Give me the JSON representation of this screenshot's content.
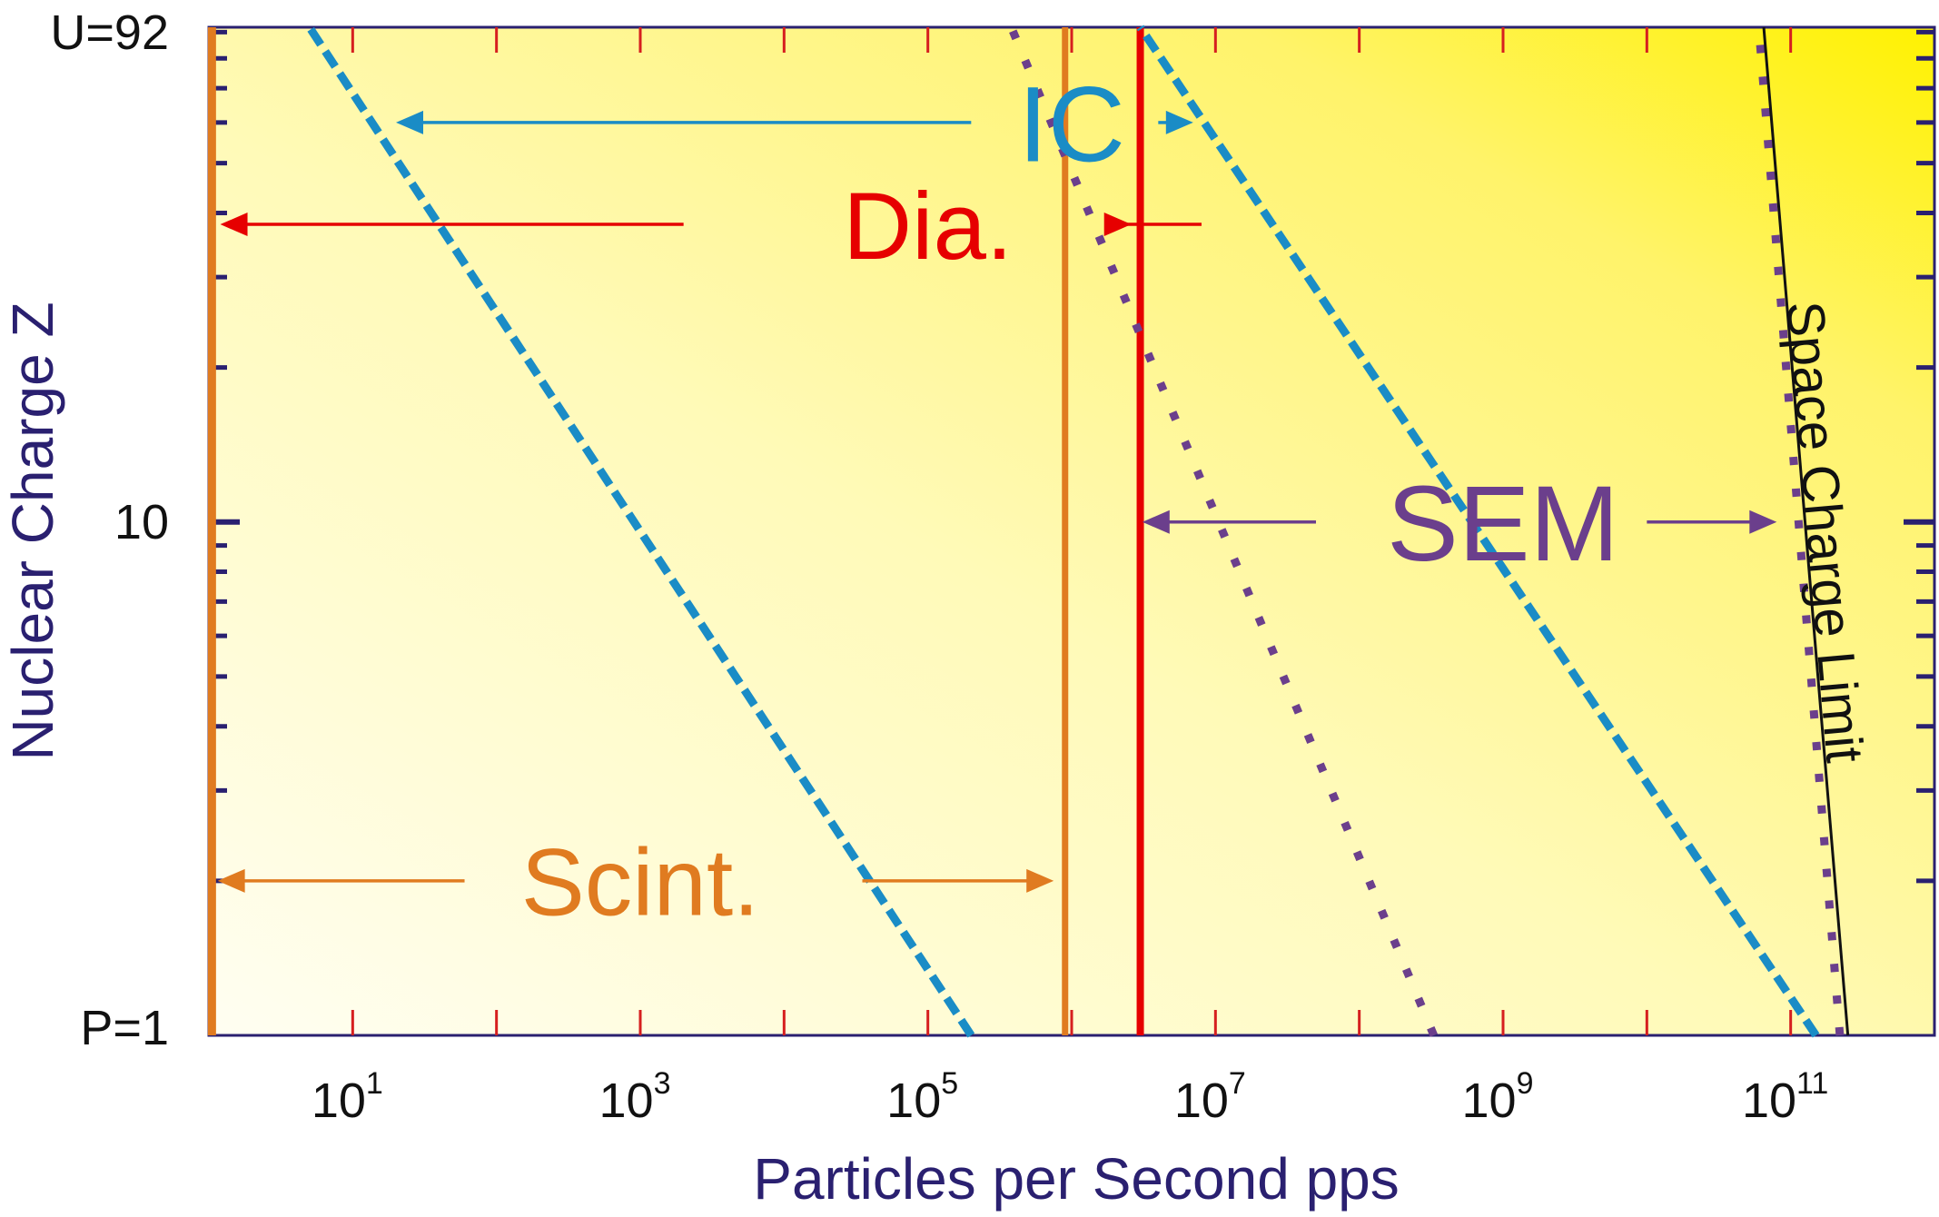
{
  "chart_data": {
    "type": "line",
    "title": "",
    "xlabel": "Particles per Second pps",
    "ylabel": "Nuclear Charge Z",
    "x_scale": "log",
    "y_scale": "log",
    "xlim": [
      1,
      1000000000000
    ],
    "ylim": [
      1,
      92
    ],
    "grid": false,
    "x_ticks": [
      {
        "value": 10,
        "base": "10",
        "exp": "1"
      },
      {
        "value": 1000,
        "base": "10",
        "exp": "3"
      },
      {
        "value": 100000,
        "base": "10",
        "exp": "5"
      },
      {
        "value": 10000000,
        "base": "10",
        "exp": "7"
      },
      {
        "value": 1000000000,
        "base": "10",
        "exp": "9"
      },
      {
        "value": 100000000000,
        "base": "10",
        "exp": "11"
      }
    ],
    "y_ticks": [
      {
        "value": 92,
        "label": "U=92"
      },
      {
        "value": 10,
        "label": "10"
      },
      {
        "value": 1,
        "label": "P=1"
      }
    ],
    "series": [
      {
        "key": "scint_low",
        "points": [
          [
            1.05,
            1
          ],
          [
            1.05,
            92
          ]
        ],
        "color": "#e07b20",
        "style": "solid",
        "width": 9
      },
      {
        "key": "scint_high",
        "points": [
          [
            900000,
            1
          ],
          [
            900000,
            92
          ]
        ],
        "color": "#e07b20",
        "style": "solid",
        "width": 7
      },
      {
        "key": "dia_high",
        "points": [
          [
            3000000,
            1
          ],
          [
            3000000,
            92
          ]
        ],
        "color": "#e60000",
        "style": "solid",
        "width": 8
      },
      {
        "key": "ic_low",
        "points": [
          [
            200000,
            1
          ],
          [
            5,
            92
          ]
        ],
        "color": "#1a8cc6",
        "style": "dashed",
        "width": 9
      },
      {
        "key": "ic_high",
        "points": [
          [
            150000000000,
            1
          ],
          [
            3000000,
            92
          ]
        ],
        "color": "#1a8cc6",
        "style": "dashed",
        "width": 9
      },
      {
        "key": "sem_low",
        "points": [
          [
            330000000,
            1
          ],
          [
            380000,
            92
          ]
        ],
        "color": "#6b3f8c",
        "style": "dotted",
        "width": 9
      },
      {
        "key": "sem_high",
        "points": [
          [
            220000000000,
            1
          ],
          [
            60000000000,
            92
          ]
        ],
        "color": "#6b3f8c",
        "style": "dotted",
        "width": 9
      },
      {
        "key": "space_charge",
        "points": [
          [
            250000000000,
            1
          ],
          [
            65000000000,
            92
          ]
        ],
        "color": "#111111",
        "style": "solid",
        "width": 3
      }
    ],
    "annotations": [
      {
        "key": "ic",
        "label": "IC",
        "color": "#1a8cc6",
        "x": 1000000,
        "y": 60,
        "size": 118,
        "arrow_from": [
          20,
          60
        ],
        "arrow_to": [
          7000000,
          60
        ],
        "gap": [
          200000,
          4000000
        ]
      },
      {
        "key": "dia",
        "label": "Dia.",
        "color": "#e60000",
        "x": 100000,
        "y": 38,
        "size": 105,
        "arrow_from": [
          1.2,
          38
        ],
        "arrow_to": [
          2600000,
          38
        ],
        "gap": [
          2000,
          8000000
        ]
      },
      {
        "key": "sem",
        "label": "SEM",
        "color": "#6b3f8c",
        "x": 1000000000,
        "y": 10,
        "size": 118,
        "arrow_from": [
          3100000,
          10
        ],
        "arrow_to": [
          80000000000,
          10
        ],
        "gap": [
          50000000,
          10000000000
        ]
      },
      {
        "key": "scint",
        "label": "Scint.",
        "color": "#e07b20",
        "x": 1000,
        "y": 2,
        "size": 105,
        "arrow_from": [
          1.15,
          2
        ],
        "arrow_to": [
          750000,
          2
        ],
        "gap": [
          60,
          35000
        ]
      }
    ],
    "rotated_label": {
      "label": "Space Charge Limit",
      "color": "#111111",
      "x": 130000000000,
      "y": 9.5,
      "size": 58
    }
  }
}
